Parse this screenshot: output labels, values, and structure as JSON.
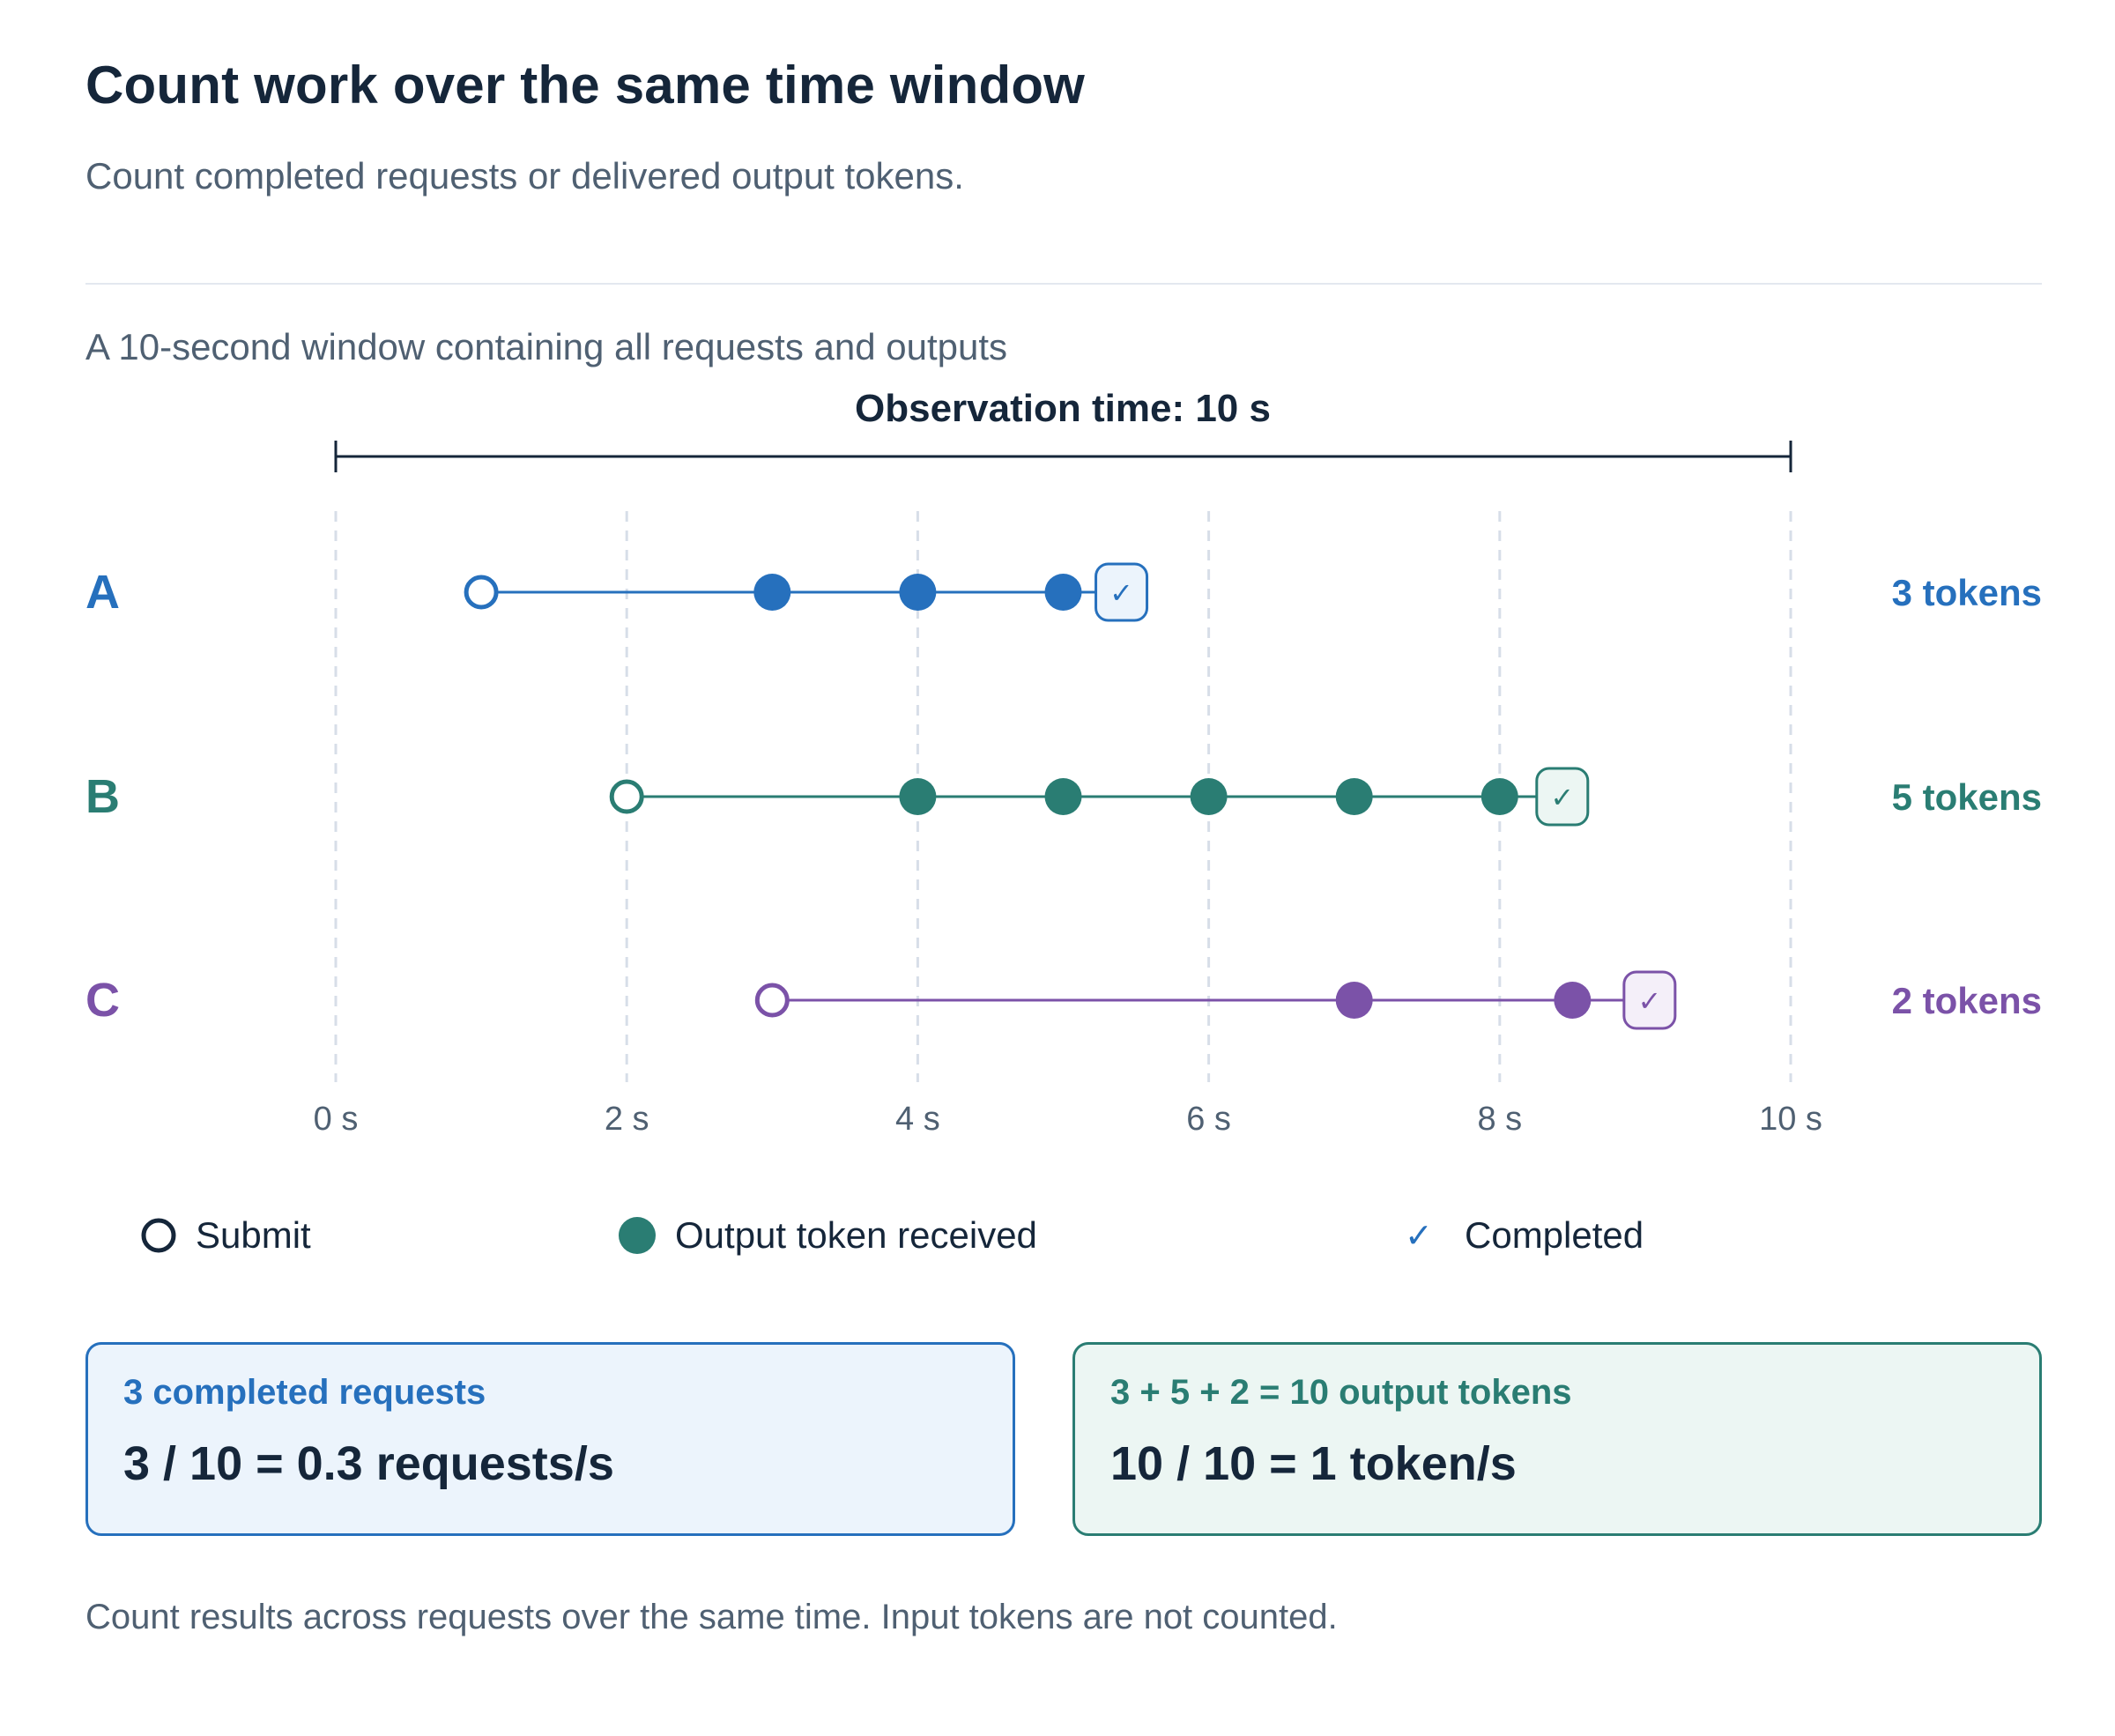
{
  "header": {
    "title": "Count work over the same time window",
    "subtitle": "Count completed requests or delivered output tokens."
  },
  "timeline": {
    "caption": "A 10-second window containing all requests and outputs",
    "observation_label": "Observation time: 10 s",
    "window_start": 0,
    "window_end": 10,
    "ticks": [
      {
        "value": 0,
        "label": "0 s"
      },
      {
        "value": 2,
        "label": "2 s"
      },
      {
        "value": 4,
        "label": "4 s"
      },
      {
        "value": 6,
        "label": "6 s"
      },
      {
        "value": 8,
        "label": "8 s"
      },
      {
        "value": 10,
        "label": "10 s"
      }
    ],
    "requests": [
      {
        "name": "A",
        "color": "#2670bd",
        "fill": "#ecf4fc",
        "submit": 1,
        "tokens": [
          3,
          4,
          5
        ],
        "completed": 5.4,
        "token_label": "3 tokens"
      },
      {
        "name": "B",
        "color": "#2a7d73",
        "fill": "#ecf6f3",
        "submit": 2,
        "tokens": [
          4,
          5,
          6,
          7,
          8
        ],
        "completed": 8.43,
        "token_label": "5 tokens"
      },
      {
        "name": "C",
        "color": "#7b52a8",
        "fill": "#f4eff9",
        "submit": 3,
        "tokens": [
          7,
          8.5
        ],
        "completed": 9.03,
        "token_label": "2 tokens"
      }
    ]
  },
  "legend": {
    "submit_label": "Submit",
    "output_label": "Output token received",
    "completed_label": "Completed",
    "check_glyph": "✓",
    "submit_color": "#15263a",
    "output_color": "#2a7d73",
    "completed_color": "#2670bd"
  },
  "cards": {
    "requests": {
      "label": "3 completed requests",
      "value": "3 / 10 = 0.3 requests/s",
      "color": "#2670bd"
    },
    "tokens": {
      "label": "3 + 5 + 2 = 10 output tokens",
      "value": "10 / 10 = 1 token/s",
      "color": "#2a7d73"
    }
  },
  "footer": "Count results across requests over the same time. Input tokens are not counted."
}
